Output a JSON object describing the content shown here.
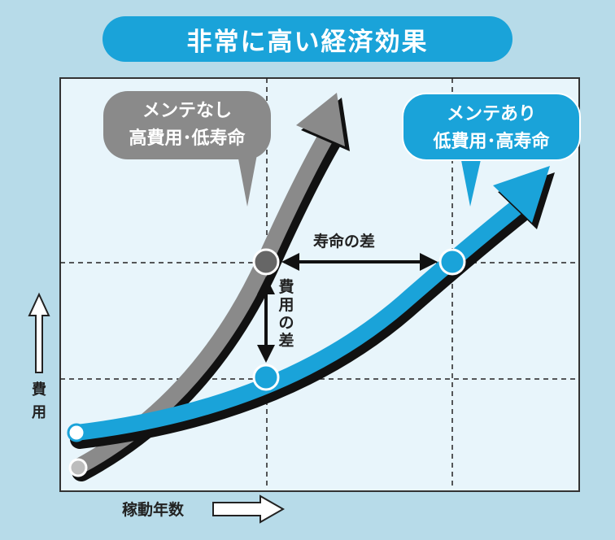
{
  "title": "非常に高い経済効果",
  "callout_no_maintenance": {
    "line1": "メンテなし",
    "line2": "高費用･低寿命"
  },
  "callout_with_maintenance": {
    "line1": "メンテあり",
    "line2": "低費用･高寿命"
  },
  "life_difference_label": "寿命の差",
  "cost_difference_label": [
    "費",
    "用",
    "の",
    "差"
  ],
  "y_axis_label": [
    "費",
    "用"
  ],
  "x_axis_label": "稼動年数",
  "colors": {
    "frame": "#b7dbe9",
    "plot_bg": "#e8f5fb",
    "accent_blue": "#1aa3d9",
    "gray": "#8a8a8a",
    "shadow": "#111111"
  }
}
